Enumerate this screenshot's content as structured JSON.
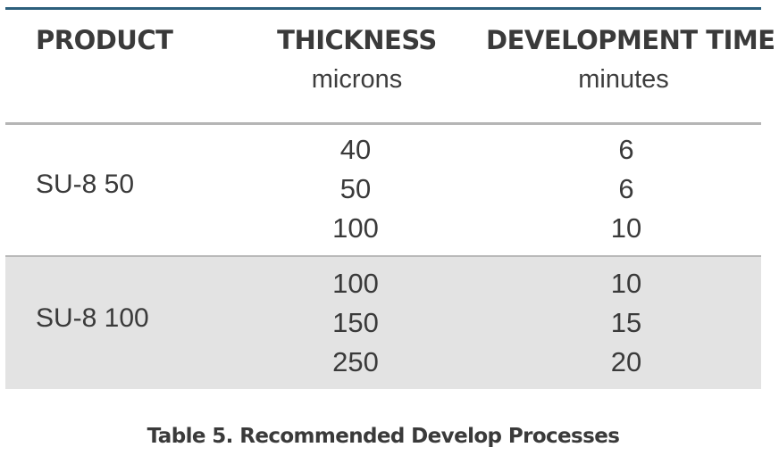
{
  "header": {
    "product": "PRODUCT",
    "thickness": "THICKNESS",
    "thickness_unit": "microns",
    "development_time": "DEVELOPMENT TIME",
    "development_time_unit": "minutes"
  },
  "groups": [
    {
      "product": "SU-8 50",
      "rows": [
        {
          "thickness": "40",
          "time": "6"
        },
        {
          "thickness": "50",
          "time": "6"
        },
        {
          "thickness": "100",
          "time": "10"
        }
      ]
    },
    {
      "product": "SU-8 100",
      "rows": [
        {
          "thickness": "100",
          "time": "10"
        },
        {
          "thickness": "150",
          "time": "15"
        },
        {
          "thickness": "250",
          "time": "20"
        }
      ]
    }
  ],
  "caption": "Table 5. Recommended Develop Processes",
  "colors": {
    "top_rule": "#2c5f7c",
    "row_shade": "#e3e3e3",
    "rule_gray": "#b5b5b5",
    "text": "#3a3a3a"
  }
}
